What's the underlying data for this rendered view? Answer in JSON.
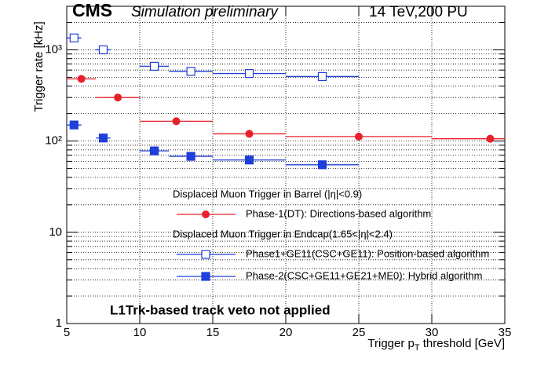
{
  "chart_data": {
    "type": "scatter",
    "experiment": "CMS",
    "subtitle": "Simulation preliminary",
    "conditions": "14 TeV,200 PU",
    "y_label": "Trigger rate [kHz]",
    "x_label": [
      "Trigger p",
      "T",
      " threshold [GeV]"
    ],
    "annotation": "L1Trk-based track veto not applied",
    "legend_headers": [
      "Displaced Muon Trigger in Barrel (|η|<0.9)",
      "Displaced Muon Trigger in Endcap(1.65<|η|<2.4)"
    ],
    "xlim": [
      5,
      35
    ],
    "xticks": [
      5,
      10,
      15,
      20,
      25,
      30,
      35
    ],
    "ylim": [
      1,
      3000
    ],
    "y_log": true,
    "yticks": [
      1,
      10,
      {
        "value": 100,
        "label": "10²"
      },
      {
        "value": 1000,
        "label": "10³"
      }
    ],
    "y_minor_ticks": [
      2,
      3,
      4,
      5,
      6,
      7,
      8,
      9,
      20,
      30,
      40,
      50,
      60,
      70,
      80,
      90,
      200,
      300,
      400,
      500,
      600,
      700,
      800,
      900,
      2000,
      3000
    ],
    "grid": true,
    "series": [
      {
        "name": "Phase-1(DT): Directions-based algorithm",
        "color": "#e8202a",
        "marker": "circle",
        "x": [
          6,
          8.5,
          12.5,
          17.5,
          25,
          34
        ],
        "x_low": [
          5,
          7,
          10,
          15,
          20,
          30
        ],
        "x_high": [
          7,
          10,
          15,
          20,
          30,
          35
        ],
        "values": [
          480,
          300,
          165,
          120,
          112,
          106
        ]
      },
      {
        "name": "Phase1+GE11(CSC+GE11): Position-based algorithm",
        "color": "#1f3fd8",
        "marker": "open-square",
        "x": [
          5.5,
          7.5,
          11,
          13.5,
          17.5,
          22.5
        ],
        "x_low": [
          5,
          7,
          10,
          12,
          15,
          20
        ],
        "x_high": [
          6,
          8,
          12,
          15,
          20,
          25
        ],
        "values": [
          1350,
          1000,
          660,
          580,
          550,
          510
        ]
      },
      {
        "name": "Phase-2(CSC+GE11+GE21+ME0): Hybrid algorithm",
        "color": "#1f3fd8",
        "marker": "square",
        "x": [
          5.5,
          7.5,
          11,
          13.5,
          17.5,
          22.5
        ],
        "x_low": [
          5,
          7,
          10,
          12,
          15,
          20
        ],
        "x_high": [
          6,
          8,
          12,
          15,
          20,
          25
        ],
        "values": [
          150,
          108,
          78,
          68,
          62,
          55
        ]
      }
    ]
  }
}
